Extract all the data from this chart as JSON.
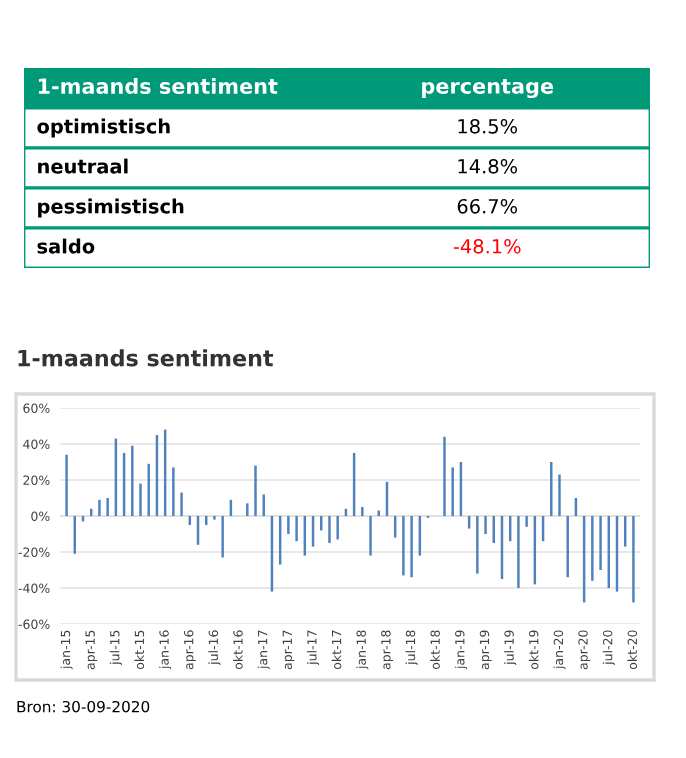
{
  "chart_data": [
    {
      "type": "other",
      "title": "1-maands sentiment",
      "annotations": [
        "percentage"
      ],
      "categories": [
        "optimistisch",
        "neutraal",
        "pessimistisch",
        "saldo"
      ],
      "values": [
        18.5,
        14.8,
        66.7,
        -48.1
      ],
      "value_labels": [
        "18.5%",
        "14.8%",
        "66.7%",
        "-48.1%"
      ],
      "color": "#009a78"
    },
    {
      "type": "bar",
      "title": "1-maands sentiment",
      "color": "#4f81bd",
      "grid": "y",
      "categories": [
        "jan-15",
        null,
        null,
        "apr-15",
        null,
        null,
        "jul-15",
        null,
        null,
        "okt-15",
        null,
        null,
        "jan-16",
        null,
        null,
        "apr-16",
        null,
        null,
        "jul-16",
        null,
        null,
        "okt-16",
        null,
        null,
        "jan-17",
        null,
        null,
        "apr-17",
        null,
        null,
        "jul-17",
        null,
        null,
        "okt-17",
        null,
        null,
        "jan-18",
        null,
        null,
        "apr-18",
        null,
        null,
        "jul-18",
        null,
        null,
        "okt-18",
        null,
        null,
        "jan-19",
        null,
        null,
        "apr-19",
        null,
        null,
        "jul-19",
        null,
        null,
        "okt-19",
        null,
        null,
        "jan-20",
        null,
        null,
        "apr-20",
        null,
        null,
        "jul-20",
        null,
        null,
        "okt-20"
      ],
      "values": [
        34,
        -21,
        -3,
        4,
        9,
        10,
        43,
        35,
        39,
        18,
        29,
        45,
        48,
        27,
        13,
        -5,
        -16,
        -5,
        -2,
        -23,
        9,
        0,
        7,
        28,
        12,
        -42,
        -27,
        -10,
        -14,
        -22,
        -17,
        -8,
        -15,
        -13,
        4,
        35,
        5,
        -22,
        3,
        19,
        -12,
        -33,
        -34,
        -22,
        -1,
        0,
        44,
        27,
        30,
        -7,
        -32,
        -10,
        -15,
        -35,
        -14,
        -40,
        -6,
        -38,
        -14,
        30,
        23,
        -34,
        10,
        -48,
        -36,
        -30,
        -40,
        -42,
        -17,
        -48
      ],
      "ylim": [
        -60,
        60
      ],
      "yticks": [
        {
          "value": -60,
          "label": "-60%"
        },
        {
          "value": -40,
          "label": "-40%"
        },
        {
          "value": -20,
          "label": "-20%"
        },
        {
          "value": 0,
          "label": "0%"
        },
        {
          "value": 20,
          "label": "20%"
        },
        {
          "value": 40,
          "label": "40%"
        },
        {
          "value": 60,
          "label": "60%"
        }
      ],
      "annotations": [
        "Bron: 30-09-2020"
      ]
    }
  ]
}
